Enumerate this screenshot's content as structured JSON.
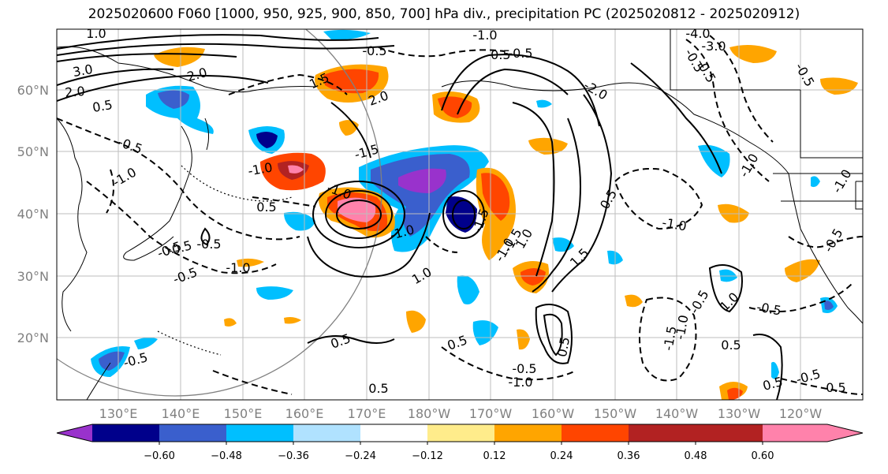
{
  "title": "2025020600 F060 [1000, 950, 925, 900, 850, 700] hPa div., precipitation PC (2025020812 - 2025020912)",
  "lat_labels": [
    "60°N",
    "50°N",
    "40°N",
    "30°N",
    "20°N"
  ],
  "lon_labels": [
    "130°E",
    "140°E",
    "150°E",
    "160°E",
    "170°E",
    "180°W",
    "170°W",
    "160°W",
    "150°W",
    "140°W",
    "130°W",
    "120°W"
  ],
  "colorbar": {
    "ticks": [
      "−0.60",
      "−0.48",
      "−0.36",
      "−0.24",
      "−0.12",
      "0.12",
      "0.24",
      "0.36",
      "0.48",
      "0.60"
    ],
    "colors": [
      "#9932cc",
      "#00008b",
      "#3a5fcd",
      "#00bfff",
      "#b0e2ff",
      "#ffffff",
      "#ffec8b",
      "#ffa500",
      "#ff4500",
      "#b22222",
      "#ff82ab"
    ]
  },
  "contour_labels": [
    {
      "text": "1.0"
    },
    {
      "text": "3.0"
    },
    {
      "text": "2.0"
    },
    {
      "text": "0.5"
    },
    {
      "text": "2.0"
    },
    {
      "text": "-0.5"
    },
    {
      "text": "-1.0"
    },
    {
      "text": "-0.5"
    },
    {
      "text": "1.5"
    },
    {
      "text": "-0.5"
    },
    {
      "text": "-1.0"
    },
    {
      "text": "2.0"
    },
    {
      "text": "-1.0"
    },
    {
      "text": "-4.0"
    },
    {
      "text": "-3.0"
    },
    {
      "text": "-0.5"
    },
    {
      "text": "-1.5"
    },
    {
      "text": "0.5"
    },
    {
      "text": "-1.0"
    },
    {
      "text": "-1.0"
    },
    {
      "text": "-1.5"
    },
    {
      "text": "-2.0"
    },
    {
      "text": "-0.5"
    },
    {
      "text": "-0.5"
    },
    {
      "text": "-0.5"
    },
    {
      "text": "-1.0"
    },
    {
      "text": "-1.0"
    },
    {
      "text": "0.5"
    },
    {
      "text": "1.0"
    },
    {
      "text": "-1.5"
    },
    {
      "text": "-0.5"
    },
    {
      "text": "0.5"
    },
    {
      "text": "-0.5"
    },
    {
      "text": "1.5"
    },
    {
      "text": "-1.0"
    },
    {
      "text": "-0.5"
    },
    {
      "text": "1.0"
    },
    {
      "text": "0.5"
    },
    {
      "text": "0.5"
    },
    {
      "text": "-0.5"
    },
    {
      "text": "-0.5"
    },
    {
      "text": "-1.5"
    },
    {
      "text": "-1.0"
    },
    {
      "text": "-0.5"
    },
    {
      "text": "-0.5"
    },
    {
      "text": "0.5"
    },
    {
      "text": "-1.0"
    },
    {
      "text": "-0.5"
    },
    {
      "text": "0.5"
    },
    {
      "text": "-1.0"
    },
    {
      "text": "-0.5"
    },
    {
      "text": "1.0"
    },
    {
      "text": "-0.5"
    },
    {
      "text": "0.5"
    },
    {
      "text": "0.5"
    },
    {
      "text": "-1.0"
    }
  ]
}
